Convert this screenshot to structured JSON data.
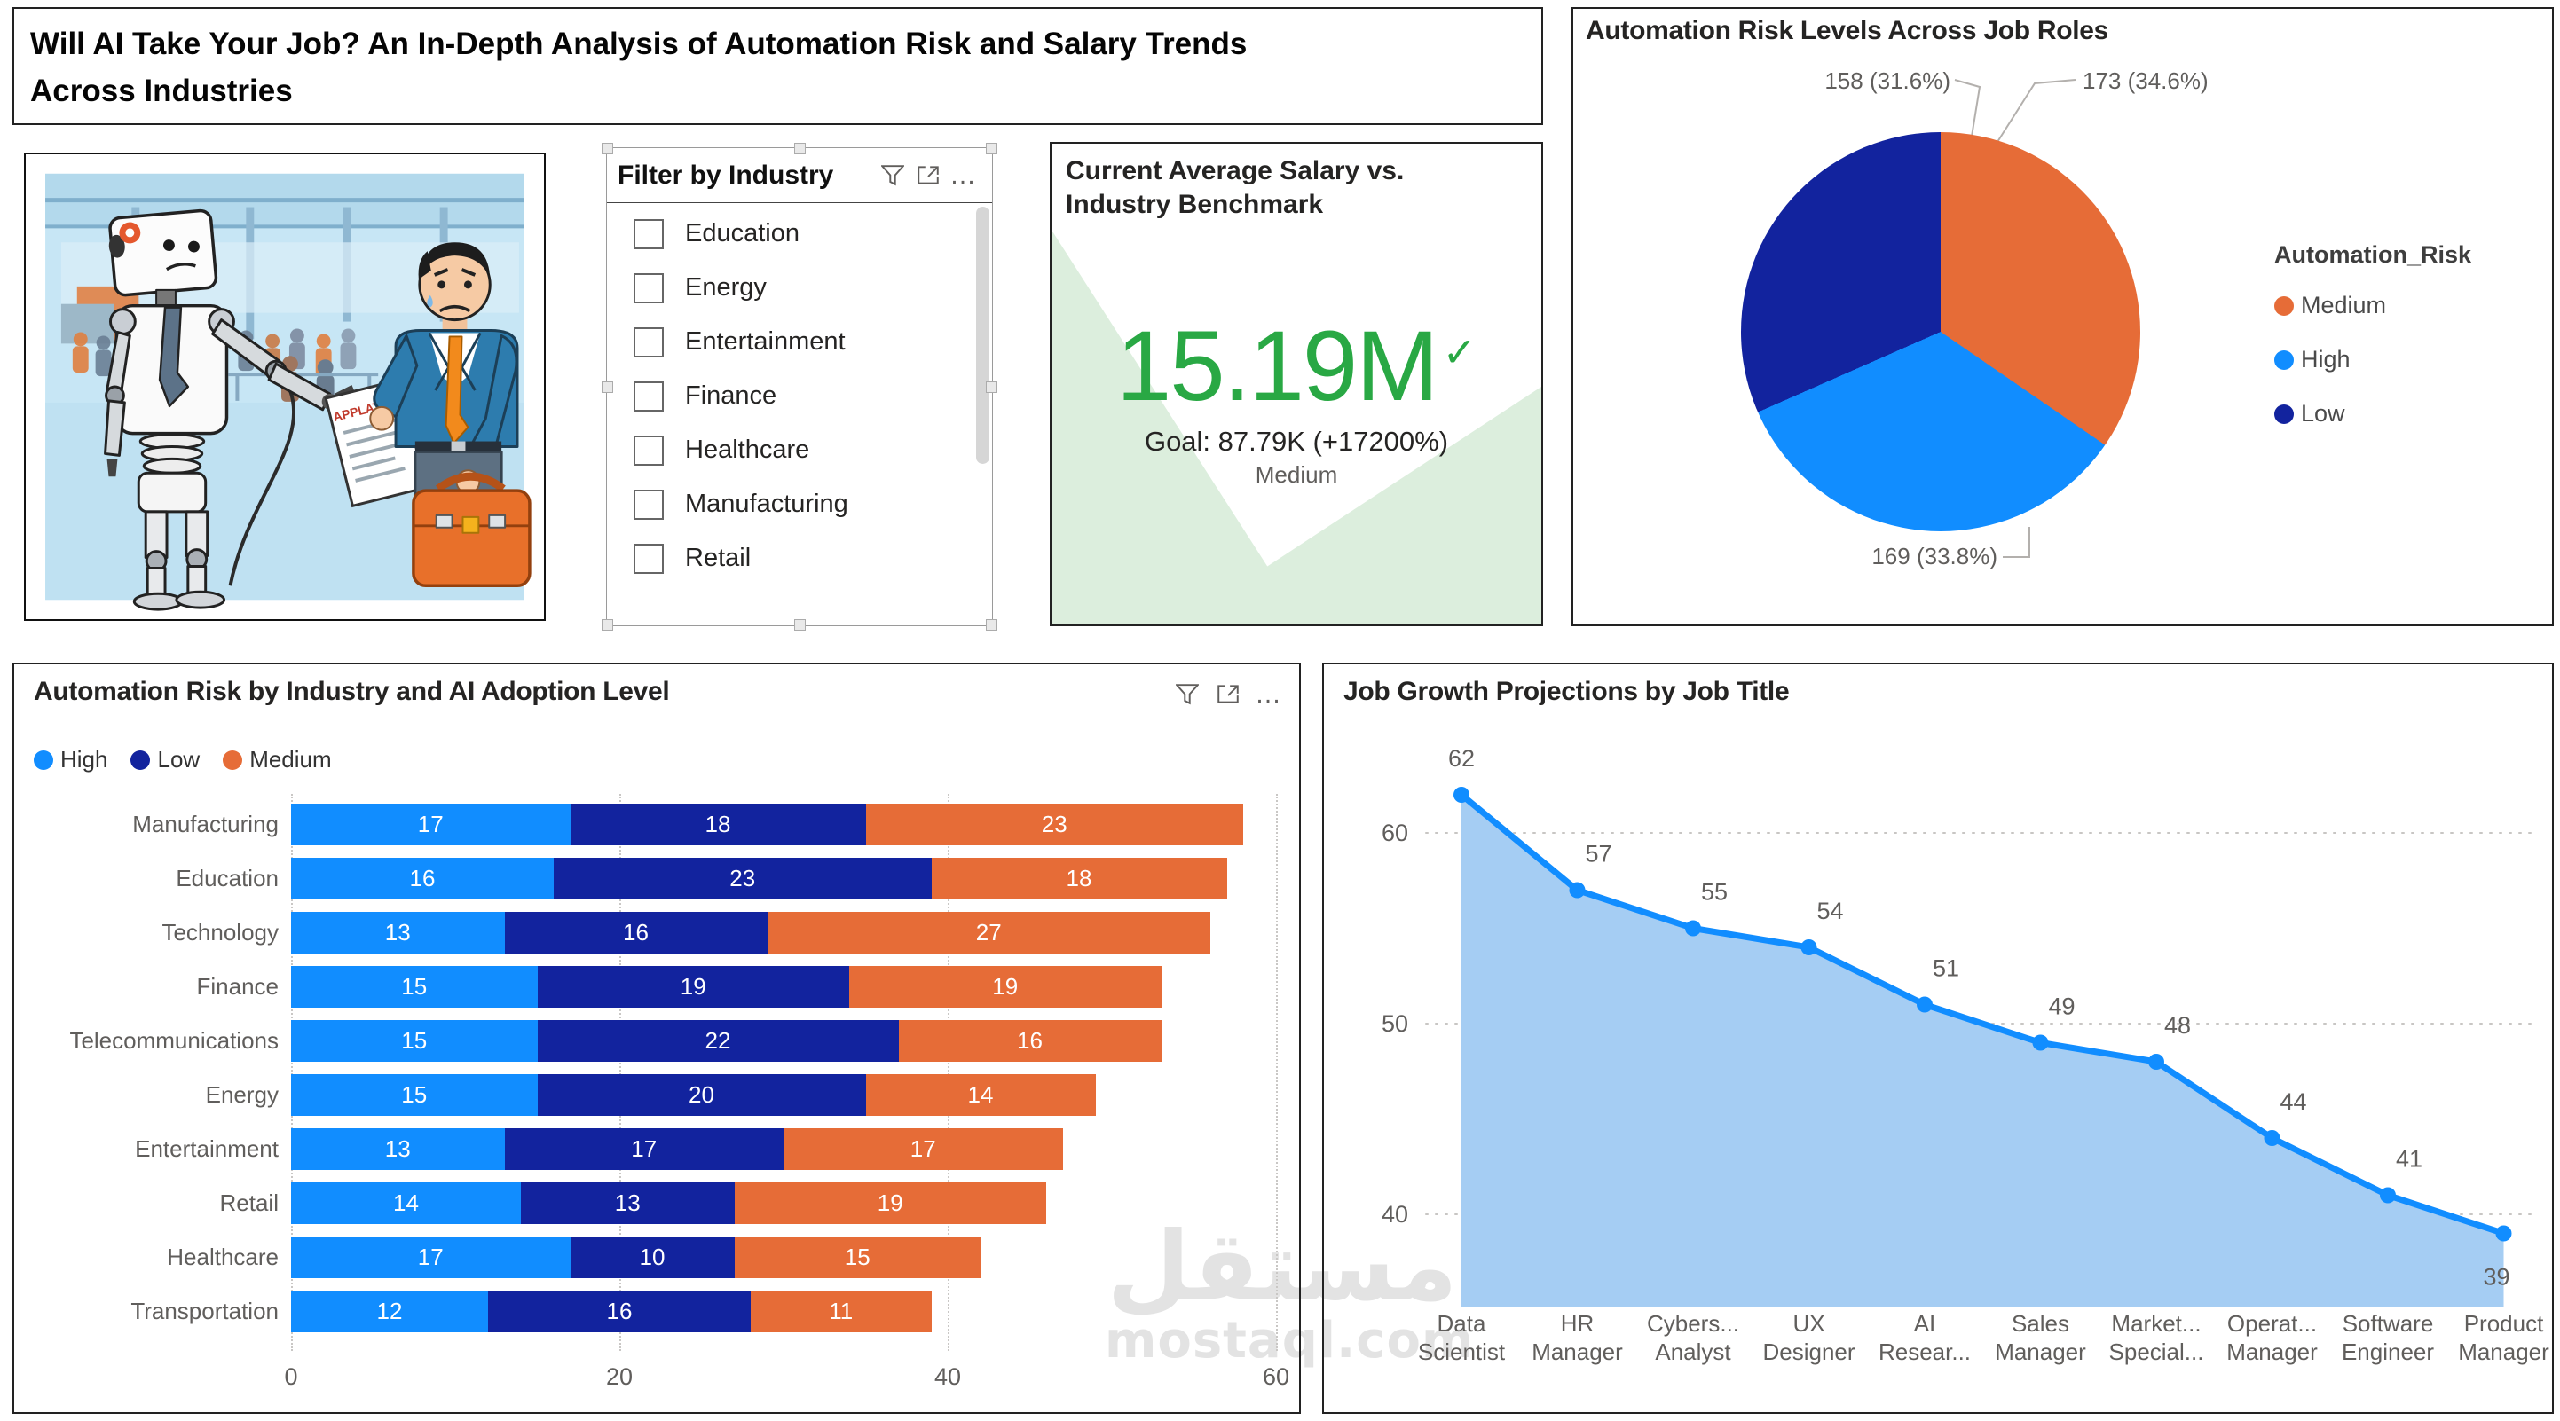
{
  "header": {
    "title_line1": "Will AI Take Your Job? An In-Depth Analysis of Automation Risk and Salary Trends",
    "title_line2": "Across Industries"
  },
  "illustration": {
    "description": "robot handing job application to worried businessman in factory",
    "paper_text": "APPLATION"
  },
  "slicer": {
    "title": "Filter by Industry",
    "items": [
      "Education",
      "Energy",
      "Entertainment",
      "Finance",
      "Healthcare",
      "Manufacturing",
      "Retail"
    ]
  },
  "kpi": {
    "title_line1": "Current Average Salary vs.",
    "title_line2": "Industry Benchmark",
    "value": "15.19M",
    "goal": "Goal: 87.79K (+17200%)",
    "status": "Medium",
    "value_color": "#29A844",
    "trend_fill": "#DCEEDD"
  },
  "icons": {
    "check": "✓",
    "ellipsis": "…"
  },
  "watermark": {
    "arabic": "مستقل",
    "latin": "mostaql.com"
  },
  "chart_data": [
    {
      "type": "pie",
      "title": "Automation Risk Levels Across Job Roles",
      "legend_title": "Automation_Risk",
      "legend_position": "right",
      "slices": [
        {
          "label": "Medium",
          "value": 173,
          "pct": 34.6,
          "display": "173 (34.6%)",
          "color": "#E66C37"
        },
        {
          "label": "High",
          "value": 169,
          "pct": 33.8,
          "display": "169 (33.8%)",
          "color": "#118DFF"
        },
        {
          "label": "Low",
          "value": 158,
          "pct": 31.6,
          "display": "158 (31.6%)",
          "color": "#12239E"
        }
      ]
    },
    {
      "type": "bar",
      "title": "Automation Risk by Industry and AI Adoption Level",
      "orientation": "horizontal-stacked",
      "categories": [
        "Manufacturing",
        "Education",
        "Technology",
        "Finance",
        "Telecommunications",
        "Energy",
        "Entertainment",
        "Retail",
        "Healthcare",
        "Transportation"
      ],
      "series": [
        {
          "name": "High",
          "color": "#118DFF",
          "values": [
            17,
            16,
            13,
            15,
            15,
            15,
            13,
            14,
            17,
            12
          ]
        },
        {
          "name": "Low",
          "color": "#12239E",
          "values": [
            18,
            23,
            16,
            19,
            22,
            20,
            17,
            13,
            10,
            16
          ]
        },
        {
          "name": "Medium",
          "color": "#E66C37",
          "values": [
            23,
            18,
            27,
            19,
            16,
            14,
            17,
            19,
            15,
            11
          ]
        }
      ],
      "x_ticks": [
        0,
        20,
        40,
        60
      ],
      "xlim": [
        0,
        61
      ],
      "grid": "vertical-dotted",
      "legend_position": "top-left"
    },
    {
      "type": "area",
      "title": "Job Growth Projections by Job Title",
      "categories": [
        [
          "Data",
          "Scientist"
        ],
        [
          "HR",
          "Manager"
        ],
        [
          "Cybers...",
          "Analyst"
        ],
        [
          "UX",
          "Designer"
        ],
        [
          "AI",
          "Resear..."
        ],
        [
          "Sales",
          "Manager"
        ],
        [
          "Market...",
          "Special..."
        ],
        [
          "Operat...",
          "Manager"
        ],
        [
          "Software",
          "Engineer"
        ],
        [
          "Product",
          "Manager"
        ]
      ],
      "values": [
        62,
        57,
        55,
        54,
        51,
        49,
        48,
        44,
        41,
        39
      ],
      "y_ticks": [
        60,
        50,
        40
      ],
      "ylim": [
        35,
        65
      ],
      "grid": "horizontal-dotted",
      "line_color": "#118DFF",
      "area_color": "#A5CDF3",
      "label_color": "#605E5C"
    }
  ]
}
